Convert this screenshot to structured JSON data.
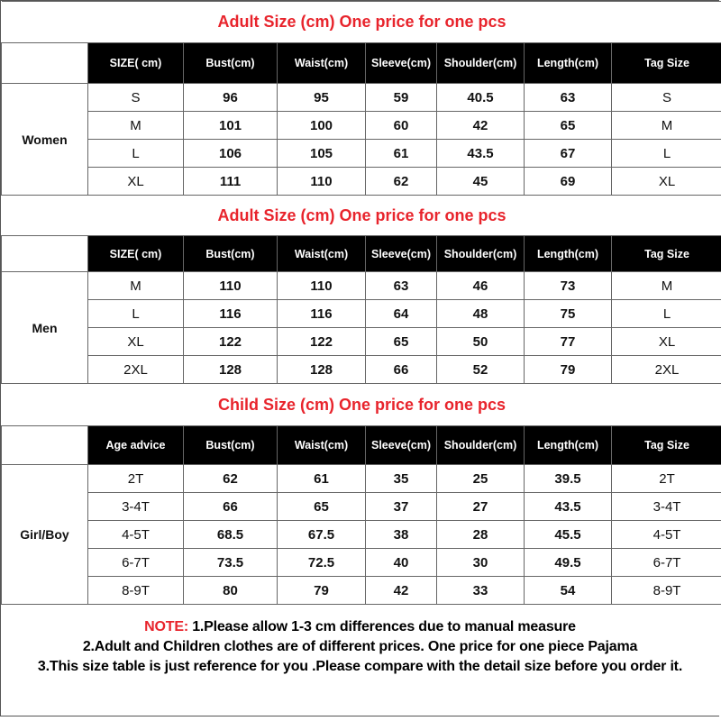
{
  "sections": [
    {
      "title": "Adult Size  (cm) One price for one pcs",
      "group": "Women",
      "headers": [
        "SIZE( cm)",
        "Bust(cm)",
        "Waist(cm)",
        "Sleeve(cm)",
        "Shoulder(cm)",
        "Length(cm)",
        "Tag Size"
      ],
      "rows": [
        [
          "S",
          "96",
          "95",
          "59",
          "40.5",
          "63",
          "S"
        ],
        [
          "M",
          "101",
          "100",
          "60",
          "42",
          "65",
          "M"
        ],
        [
          "L",
          "106",
          "105",
          "61",
          "43.5",
          "67",
          "L"
        ],
        [
          "XL",
          "111",
          "110",
          "62",
          "45",
          "69",
          "XL"
        ]
      ]
    },
    {
      "title": "Adult Size  (cm) One price for one pcs",
      "group": "Men",
      "headers": [
        "SIZE( cm)",
        "Bust(cm)",
        "Waist(cm)",
        "Sleeve(cm)",
        "Shoulder(cm)",
        "Length(cm)",
        "Tag Size"
      ],
      "rows": [
        [
          "M",
          "110",
          "110",
          "63",
          "46",
          "73",
          "M"
        ],
        [
          "L",
          "116",
          "116",
          "64",
          "48",
          "75",
          "L"
        ],
        [
          "XL",
          "122",
          "122",
          "65",
          "50",
          "77",
          "XL"
        ],
        [
          "2XL",
          "128",
          "128",
          "66",
          "52",
          "79",
          "2XL"
        ]
      ]
    },
    {
      "title": "Child Size  (cm) One price for one pcs",
      "group": "Girl/Boy",
      "headers": [
        "Age advice",
        "Bust(cm)",
        "Waist(cm)",
        "Sleeve(cm)",
        "Shoulder(cm)",
        "Length(cm)",
        "Tag Size"
      ],
      "rows": [
        [
          "2T",
          "62",
          "61",
          "35",
          "25",
          "39.5",
          "2T"
        ],
        [
          "3-4T",
          "66",
          "65",
          "37",
          "27",
          "43.5",
          "3-4T"
        ],
        [
          "4-5T",
          "68.5",
          "67.5",
          "38",
          "28",
          "45.5",
          "4-5T"
        ],
        [
          "6-7T",
          "73.5",
          "72.5",
          "40",
          "30",
          "49.5",
          "6-7T"
        ],
        [
          "8-9T",
          "80",
          "79",
          "42",
          "33",
          "54",
          "8-9T"
        ]
      ]
    }
  ],
  "note": {
    "label": "NOTE:",
    "line1": " 1.Please allow 1-3 cm differences due to manual measure",
    "line2": "2.Adult and Children clothes are of different prices. One price for one piece Pajama",
    "line3": "3.This size table is just reference for you .Please compare with the detail size before you order  it."
  },
  "colors": {
    "title": "#e8242c",
    "header_bg": "#000000",
    "header_text": "#ffffff"
  }
}
